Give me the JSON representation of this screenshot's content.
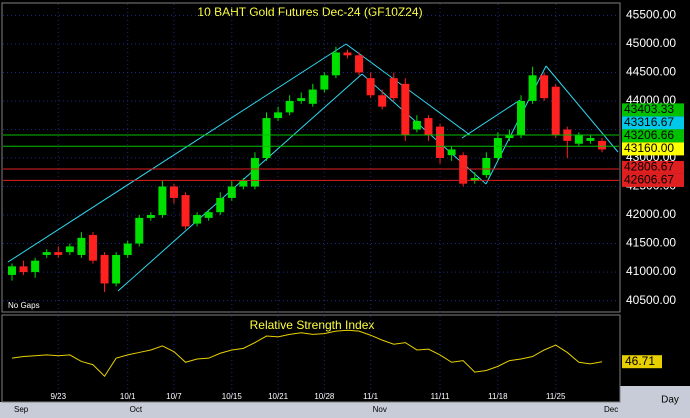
{
  "chart_data": [
    {
      "type": "candlestick",
      "title": "10 BAHT Gold Futures Dec-24 (GF10Z24)",
      "note": "No Gaps",
      "categories": [
        null,
        null,
        null,
        null,
        "9/23",
        null,
        null,
        null,
        null,
        null,
        "10/1",
        null,
        null,
        null,
        "10/7",
        null,
        null,
        null,
        null,
        "10/15",
        null,
        null,
        null,
        "10/21",
        null,
        null,
        null,
        "10/28",
        null,
        null,
        null,
        "11/1",
        null,
        null,
        null,
        null,
        null,
        "11/11",
        null,
        null,
        null,
        null,
        "11/18",
        null,
        null,
        null,
        null,
        "11/25",
        null,
        null,
        null,
        null,
        null
      ],
      "months": [
        "Sep",
        null,
        null,
        null,
        null,
        null,
        null,
        null,
        null,
        null,
        "Oct",
        null,
        null,
        null,
        null,
        null,
        null,
        null,
        null,
        null,
        null,
        null,
        null,
        null,
        null,
        null,
        null,
        null,
        null,
        null,
        null,
        "Nov",
        null,
        null,
        null,
        null,
        null,
        null,
        null,
        null,
        null,
        null,
        null,
        null,
        null,
        null,
        null,
        null,
        null,
        null,
        null,
        "Dec"
      ],
      "interval": "Day",
      "open": [
        40950,
        41100,
        41000,
        41300,
        41350,
        41350,
        41300,
        41650,
        41300,
        40800,
        41300,
        41500,
        41950,
        42000,
        42500,
        42350,
        41850,
        41950,
        42050,
        42300,
        42500,
        42500,
        43000,
        43700,
        43800,
        44000,
        43950,
        44200,
        44450,
        44850,
        44800,
        44400,
        44100,
        44400,
        44300,
        43500,
        43700,
        43550,
        43050,
        43050,
        42600,
        42700,
        43000,
        43350,
        43400,
        44000,
        44450,
        44250,
        43500,
        43250,
        43300,
        43300
      ],
      "high": [
        41150,
        41200,
        41250,
        41400,
        41450,
        41500,
        41700,
        41700,
        41350,
        41350,
        41550,
        42000,
        42050,
        42600,
        42550,
        42400,
        42050,
        42100,
        42400,
        42600,
        42650,
        43100,
        43800,
        43900,
        44100,
        44150,
        44300,
        44500,
        44950,
        44900,
        44850,
        44500,
        44200,
        44500,
        44400,
        43750,
        43750,
        43600,
        43200,
        43100,
        42750,
        43100,
        43450,
        43500,
        44100,
        44600,
        44500,
        44300,
        43550,
        43450,
        43400,
        43350
      ],
      "low": [
        40850,
        40950,
        40900,
        41250,
        41250,
        41300,
        41250,
        41150,
        40650,
        40750,
        41250,
        41450,
        41900,
        41950,
        42200,
        41750,
        41800,
        41900,
        42000,
        42250,
        42450,
        42450,
        42950,
        43650,
        43750,
        43950,
        43900,
        44150,
        44400,
        44750,
        44450,
        44050,
        43850,
        44000,
        43300,
        43450,
        43300,
        42900,
        42950,
        42500,
        42550,
        42650,
        42950,
        43300,
        43350,
        43950,
        44000,
        43350,
        43000,
        43200,
        43250,
        43100
      ],
      "close": [
        41100,
        41000,
        41200,
        41350,
        41300,
        41450,
        41600,
        41200,
        40800,
        41300,
        41500,
        41950,
        42000,
        42500,
        42300,
        41800,
        42000,
        42050,
        42300,
        42500,
        42600,
        43000,
        43700,
        43800,
        44000,
        44050,
        44200,
        44450,
        44850,
        44800,
        44500,
        44100,
        43900,
        44050,
        43400,
        43650,
        43400,
        43000,
        43150,
        42550,
        42650,
        43000,
        43350,
        43400,
        44000,
        44450,
        44050,
        43400,
        43300,
        43400,
        43350,
        43150
      ],
      "up_color": "#00e000",
      "down_color": "#ff2020",
      "ylim": [
        40300,
        45700
      ],
      "yticks": [
        {
          "value": 40500,
          "label": "40500.00"
        },
        {
          "value": 41000,
          "label": "41000.00"
        },
        {
          "value": 41500,
          "label": "41500.00"
        },
        {
          "value": 42000,
          "label": "42000.00"
        },
        {
          "value": 42500,
          "label": "42500.00"
        },
        {
          "value": 43000,
          "label": "43000.00"
        },
        {
          "value": 43500,
          "label": "43500.00"
        },
        {
          "value": 44000,
          "label": "44000.00"
        },
        {
          "value": 44500,
          "label": "44500.00"
        },
        {
          "value": 45000,
          "label": "45000.00"
        },
        {
          "value": 45500,
          "label": "45500.00"
        }
      ],
      "grid": true,
      "markers": [
        {
          "value": 43403.33,
          "color": "#00c000",
          "line": true
        },
        {
          "value": 43316.67,
          "color": "#00c8e8",
          "line": false
        },
        {
          "value": 43206.66,
          "color": "#00c000",
          "line": true
        },
        {
          "value": 43160,
          "label": "43160.00",
          "color": "#ffff00",
          "line": false
        },
        {
          "value": 42806.67,
          "color": "#e02020",
          "line": true
        },
        {
          "value": 42606.67,
          "color": "#e02020",
          "line": true
        }
      ]
    },
    {
      "type": "line",
      "title": "Relative Strength Index",
      "series": [
        {
          "name": "RSI",
          "color": "#e8d000",
          "values": [
            51,
            53,
            54,
            55,
            54,
            55,
            47,
            43,
            29,
            51,
            55,
            58,
            61,
            66,
            59,
            46,
            50,
            51,
            57,
            61,
            63,
            70,
            78,
            77,
            80,
            82,
            80,
            81,
            84,
            85,
            84,
            79,
            73,
            68,
            70,
            61,
            62,
            55,
            46,
            48,
            34,
            36,
            41,
            48,
            50,
            53,
            61,
            67,
            58,
            46,
            44,
            46.71
          ]
        }
      ],
      "ylim": [
        0,
        100
      ]
    }
  ]
}
